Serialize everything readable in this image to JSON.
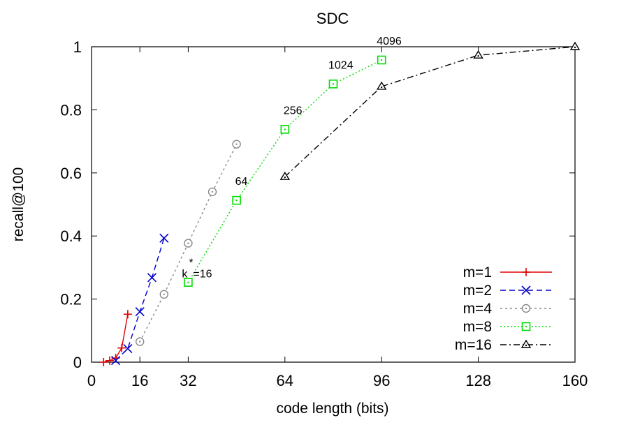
{
  "chart_data": {
    "type": "line",
    "title": "SDC",
    "xlabel": "code length (bits)",
    "ylabel": "recall@100",
    "xlim": [
      0,
      160
    ],
    "ylim": [
      0,
      1
    ],
    "xticks": [
      0,
      16,
      32,
      64,
      96,
      128,
      160
    ],
    "yticks": [
      0,
      0.2,
      0.4,
      0.6,
      0.8,
      1
    ],
    "yticklabels": [
      "0",
      "0.2",
      "0.4",
      "0.6",
      "0.8",
      "1"
    ],
    "grid": false,
    "legend_position": "bottom-right",
    "series": [
      {
        "name": "m=1",
        "color": "#e00000",
        "dash": "",
        "marker": "plus",
        "x": [
          4,
          6,
          8,
          10,
          12
        ],
        "y": [
          0.0,
          0.005,
          0.013,
          0.045,
          0.152
        ]
      },
      {
        "name": "m=2",
        "color": "#0000cc",
        "dash": "8,5",
        "marker": "cross",
        "x": [
          8,
          12,
          16,
          20,
          24
        ],
        "y": [
          0.005,
          0.043,
          0.16,
          0.268,
          0.393
        ]
      },
      {
        "name": "m=4",
        "color": "#888888",
        "dash": "3,4",
        "marker": "circle",
        "x": [
          16,
          24,
          32,
          40,
          48
        ],
        "y": [
          0.065,
          0.215,
          0.377,
          0.54,
          0.691
        ]
      },
      {
        "name": "m=8",
        "color": "#00dd00",
        "dash": "2,3",
        "marker": "square",
        "x": [
          32,
          48,
          64,
          80,
          96
        ],
        "y": [
          0.253,
          0.513,
          0.738,
          0.882,
          0.958
        ]
      },
      {
        "name": "m=16",
        "color": "#000000",
        "dash": "9,4,2,4",
        "marker": "triangle",
        "x": [
          64,
          96,
          128,
          160
        ],
        "y": [
          0.588,
          0.874,
          0.973,
          1.0
        ]
      }
    ],
    "annotations": [
      {
        "text": "k",
        "x": 32,
        "y": 0.253
      },
      {
        "text": "*",
        "x": 32,
        "y": 0.253
      },
      {
        "text": "=16",
        "x": 32,
        "y": 0.253
      },
      {
        "text": "64",
        "x": 48,
        "y": 0.513
      },
      {
        "text": "256",
        "x": 64,
        "y": 0.738
      },
      {
        "text": "1024",
        "x": 80,
        "y": 0.882
      },
      {
        "text": "4096",
        "x": 96,
        "y": 0.958
      }
    ]
  }
}
